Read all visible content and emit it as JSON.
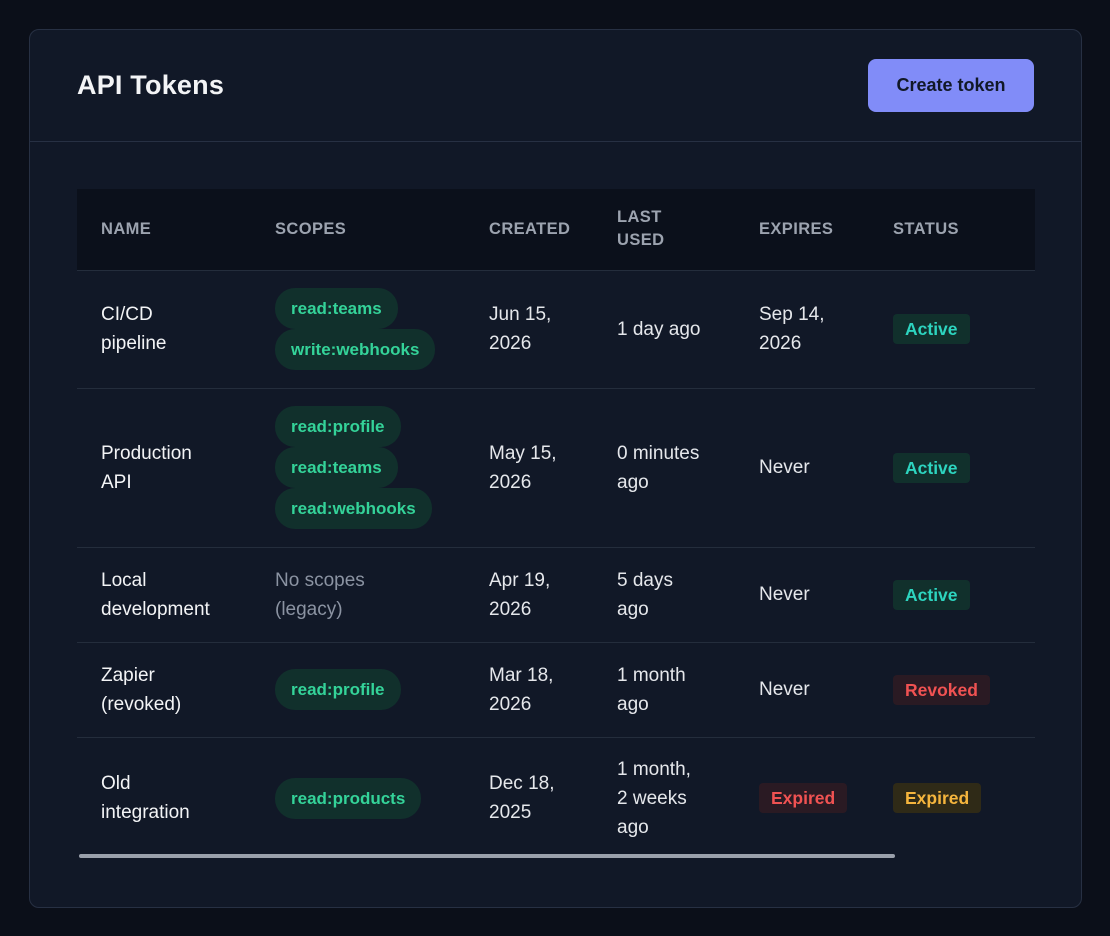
{
  "page": {
    "title": "API Tokens",
    "create_button": "Create token"
  },
  "table": {
    "columns": [
      "NAME",
      "SCOPES",
      "CREATED",
      "LAST USED",
      "EXPIRES",
      "STATUS"
    ],
    "rows": [
      {
        "name": "CI/CD pipeline",
        "scopes": [
          "read:teams",
          "write:webhooks"
        ],
        "created": "Jun 15, 2026",
        "last_used": "1 day ago",
        "expires": "Sep 14, 2026",
        "status": "Active"
      },
      {
        "name": "Production API",
        "scopes": [
          "read:profile",
          "read:teams",
          "read:webhooks"
        ],
        "created": "May 15, 2026",
        "last_used": "0 minutes ago",
        "expires": "Never",
        "status": "Active"
      },
      {
        "name": "Local development",
        "scopes_text": "No scopes (legacy)",
        "created": "Apr 19, 2026",
        "last_used": "5 days ago",
        "expires": "Never",
        "status": "Active"
      },
      {
        "name": "Zapier (revoked)",
        "scopes": [
          "read:profile"
        ],
        "created": "Mar 18, 2026",
        "last_used": "1 month ago",
        "expires": "Never",
        "status": "Revoked"
      },
      {
        "name": "Old integration",
        "scopes": [
          "read:products"
        ],
        "created": "Dec 18, 2025",
        "last_used": "1 month, 2 weeks ago",
        "expires_badge": "Expired",
        "status": "Expired"
      }
    ]
  },
  "colors": {
    "accent": "#818cf8",
    "scope_text": "#34d399",
    "active": "#2dd4bf",
    "revoked": "#f05252",
    "expired": "#f5b53d"
  }
}
